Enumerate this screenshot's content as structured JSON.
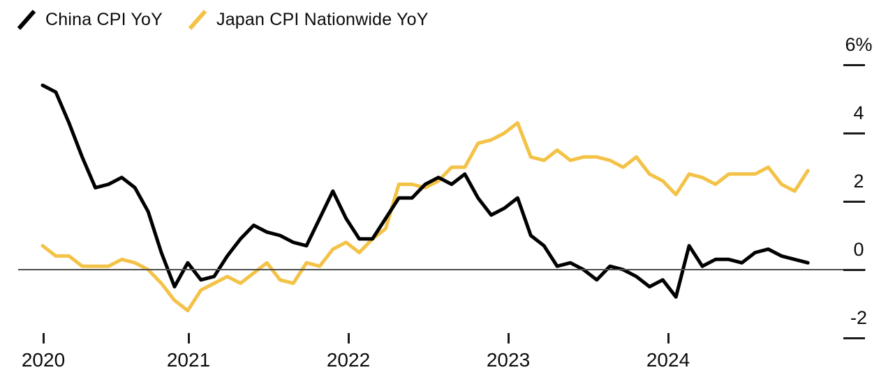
{
  "chart_data": {
    "type": "line",
    "frequency": "monthly",
    "x_start": "2020-01",
    "x_end": "2024-11",
    "x": [
      "2020-01",
      "2020-02",
      "2020-03",
      "2020-04",
      "2020-05",
      "2020-06",
      "2020-07",
      "2020-08",
      "2020-09",
      "2020-10",
      "2020-11",
      "2020-12",
      "2021-01",
      "2021-02",
      "2021-03",
      "2021-04",
      "2021-05",
      "2021-06",
      "2021-07",
      "2021-08",
      "2021-09",
      "2021-10",
      "2021-11",
      "2021-12",
      "2022-01",
      "2022-02",
      "2022-03",
      "2022-04",
      "2022-05",
      "2022-06",
      "2022-07",
      "2022-08",
      "2022-09",
      "2022-10",
      "2022-11",
      "2022-12",
      "2023-01",
      "2023-02",
      "2023-03",
      "2023-04",
      "2023-05",
      "2023-06",
      "2023-07",
      "2023-08",
      "2023-09",
      "2023-10",
      "2023-11",
      "2023-12",
      "2024-01",
      "2024-02",
      "2024-03",
      "2024-04",
      "2024-05",
      "2024-06",
      "2024-07",
      "2024-08",
      "2024-09",
      "2024-10",
      "2024-11"
    ],
    "series": [
      {
        "name": "China CPI YoY",
        "color": "#000000",
        "values": [
          5.4,
          5.2,
          4.3,
          3.3,
          2.4,
          2.5,
          2.7,
          2.4,
          1.7,
          0.5,
          -0.5,
          0.2,
          -0.3,
          -0.2,
          0.4,
          0.9,
          1.3,
          1.1,
          1.0,
          0.8,
          0.7,
          1.5,
          2.3,
          1.5,
          0.9,
          0.9,
          1.5,
          2.1,
          2.1,
          2.5,
          2.7,
          2.5,
          2.8,
          2.1,
          1.6,
          1.8,
          2.1,
          1.0,
          0.7,
          0.1,
          0.2,
          0.0,
          -0.3,
          0.1,
          0.0,
          -0.2,
          -0.5,
          -0.3,
          -0.8,
          0.7,
          0.1,
          0.3,
          0.3,
          0.2,
          0.5,
          0.6,
          0.4,
          0.3,
          0.2
        ]
      },
      {
        "name": "Japan CPI Nationwide YoY",
        "color": "#F3C247",
        "values": [
          0.7,
          0.4,
          0.4,
          0.1,
          0.1,
          0.1,
          0.3,
          0.2,
          0.0,
          -0.4,
          -0.9,
          -1.2,
          -0.6,
          -0.4,
          -0.2,
          -0.4,
          -0.1,
          0.2,
          -0.3,
          -0.4,
          0.2,
          0.1,
          0.6,
          0.8,
          0.5,
          0.9,
          1.2,
          2.5,
          2.5,
          2.4,
          2.6,
          3.0,
          3.0,
          3.7,
          3.8,
          4.0,
          4.3,
          3.3,
          3.2,
          3.5,
          3.2,
          3.3,
          3.3,
          3.2,
          3.0,
          3.3,
          2.8,
          2.6,
          2.2,
          2.8,
          2.7,
          2.5,
          2.8,
          2.8,
          2.8,
          3.0,
          2.5,
          2.3,
          2.9
        ]
      }
    ],
    "x_tick_labels": [
      "2020",
      "2021",
      "2022",
      "2023",
      "2024"
    ],
    "y_tick_labels": [
      "6%",
      "4",
      "2",
      "0",
      "-2"
    ],
    "y_tick_values": [
      6,
      4,
      2,
      0,
      -2
    ],
    "y_unit": "%",
    "ylim": [
      -2.6,
      6.2
    ],
    "grid": false,
    "zero_line": true,
    "legend_position": "top-left",
    "colors": {
      "china_line": "#000000",
      "japan_line": "#F3C247",
      "zero_line": "#4b4b4d",
      "axis_text": "#0a0a0a"
    }
  }
}
